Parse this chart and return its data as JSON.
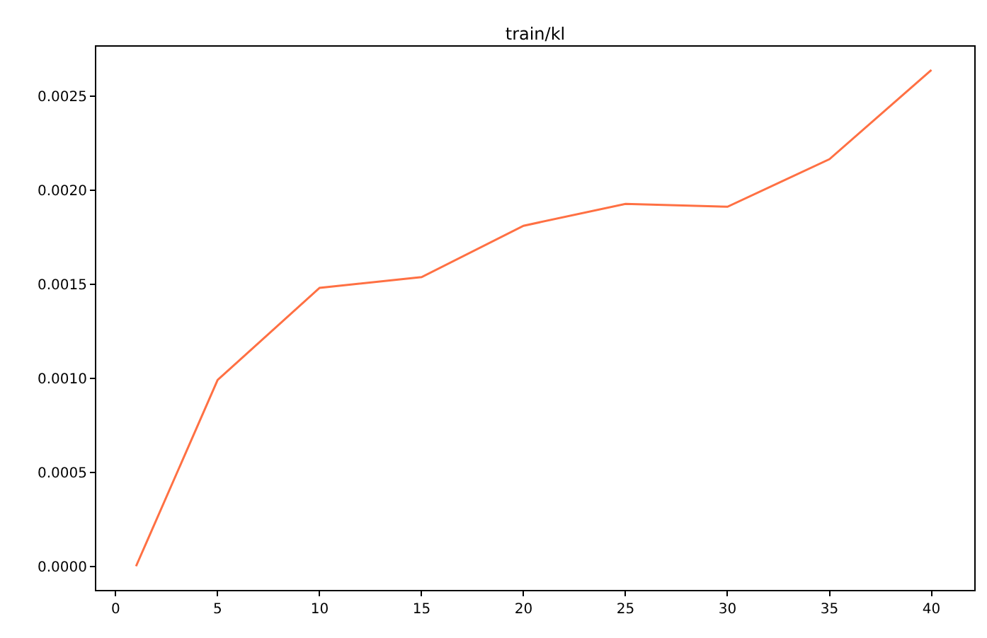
{
  "chart_data": {
    "type": "line",
    "title": "train/kl",
    "x": [
      1,
      5,
      10,
      15,
      20,
      25,
      30,
      35,
      40
    ],
    "series": [
      {
        "color": "#ff7043",
        "values": [
          0.0,
          0.00099,
          0.00148,
          0.001537,
          0.00181,
          0.001926,
          0.001911,
          0.002164,
          0.002638
        ]
      }
    ],
    "xlim": [
      -0.95,
      42.1
    ],
    "xticks": [
      0,
      5,
      10,
      15,
      20,
      25,
      30,
      35,
      40
    ],
    "ylim": [
      -0.000126,
      0.002762
    ],
    "yticks": [
      {
        "value": 0,
        "label": "0.0000"
      },
      {
        "value": 0.0005,
        "label": "0.0005"
      },
      {
        "value": 0.001,
        "label": "0.0010"
      },
      {
        "value": 0.0015,
        "label": "0.0015"
      },
      {
        "value": 0.002,
        "label": "0.0020"
      },
      {
        "value": 0.0025,
        "label": "0.0025"
      }
    ],
    "grid": false,
    "marker": "none",
    "line_style": "solid"
  }
}
